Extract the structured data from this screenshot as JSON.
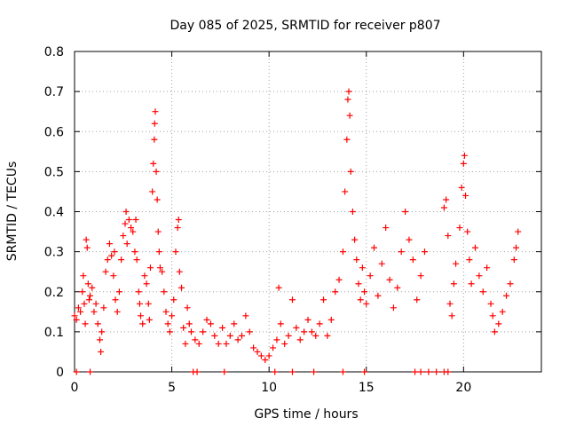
{
  "chart_data": {
    "type": "scatter",
    "title": "Day 085 of 2025, SRMTID for receiver p807",
    "xlabel": "GPS time / hours",
    "ylabel": "SRMTID / TECUs",
    "xlim": [
      0,
      24
    ],
    "ylim": [
      0,
      0.8
    ],
    "x_ticks": [
      0,
      5,
      10,
      15,
      20
    ],
    "x_tick_labels": [
      "0",
      "5",
      "10",
      "15",
      "20"
    ],
    "y_ticks": [
      0,
      0.1,
      0.2,
      0.3,
      0.4,
      0.5,
      0.6,
      0.7,
      0.8
    ],
    "y_tick_labels": [
      "0",
      "0.1",
      "0.2",
      "0.3",
      "0.4",
      "0.5",
      "0.6",
      "0.7",
      "0.8"
    ],
    "grid": true,
    "marker": "plus",
    "color": "#ff0000",
    "series": [
      {
        "name": "SRMTID",
        "points": [
          [
            0.0,
            0.14
          ],
          [
            0.1,
            0.13
          ],
          [
            0.2,
            0.16
          ],
          [
            0.3,
            0.15
          ],
          [
            0.4,
            0.2
          ],
          [
            0.45,
            0.24
          ],
          [
            0.5,
            0.17
          ],
          [
            0.55,
            0.12
          ],
          [
            0.6,
            0.33
          ],
          [
            0.65,
            0.31
          ],
          [
            0.7,
            0.22
          ],
          [
            0.75,
            0.18
          ],
          [
            0.8,
            0.19
          ],
          [
            0.9,
            0.21
          ],
          [
            1.0,
            0.15
          ],
          [
            1.1,
            0.17
          ],
          [
            1.2,
            0.12
          ],
          [
            1.3,
            0.08
          ],
          [
            1.35,
            0.05
          ],
          [
            1.4,
            0.1
          ],
          [
            1.5,
            0.16
          ],
          [
            1.6,
            0.25
          ],
          [
            1.7,
            0.28
          ],
          [
            1.8,
            0.32
          ],
          [
            1.9,
            0.29
          ],
          [
            2.0,
            0.24
          ],
          [
            2.05,
            0.3
          ],
          [
            2.1,
            0.18
          ],
          [
            2.2,
            0.15
          ],
          [
            2.3,
            0.2
          ],
          [
            2.4,
            0.28
          ],
          [
            2.5,
            0.34
          ],
          [
            2.6,
            0.37
          ],
          [
            2.65,
            0.4
          ],
          [
            2.7,
            0.32
          ],
          [
            2.8,
            0.38
          ],
          [
            2.9,
            0.36
          ],
          [
            3.0,
            0.35
          ],
          [
            3.1,
            0.3
          ],
          [
            3.15,
            0.38
          ],
          [
            3.2,
            0.28
          ],
          [
            3.3,
            0.2
          ],
          [
            3.35,
            0.17
          ],
          [
            3.4,
            0.14
          ],
          [
            3.5,
            0.12
          ],
          [
            3.6,
            0.24
          ],
          [
            3.7,
            0.22
          ],
          [
            3.8,
            0.17
          ],
          [
            3.85,
            0.13
          ],
          [
            3.9,
            0.26
          ],
          [
            4.0,
            0.45
          ],
          [
            4.05,
            0.52
          ],
          [
            4.1,
            0.58
          ],
          [
            4.12,
            0.62
          ],
          [
            4.15,
            0.65
          ],
          [
            4.2,
            0.5
          ],
          [
            4.25,
            0.43
          ],
          [
            4.3,
            0.35
          ],
          [
            4.35,
            0.3
          ],
          [
            4.4,
            0.26
          ],
          [
            4.5,
            0.25
          ],
          [
            4.6,
            0.2
          ],
          [
            4.7,
            0.15
          ],
          [
            4.8,
            0.12
          ],
          [
            4.9,
            0.1
          ],
          [
            5.0,
            0.14
          ],
          [
            5.1,
            0.18
          ],
          [
            5.2,
            0.3
          ],
          [
            5.3,
            0.36
          ],
          [
            5.35,
            0.38
          ],
          [
            5.4,
            0.25
          ],
          [
            5.5,
            0.21
          ],
          [
            5.6,
            0.11
          ],
          [
            5.7,
            0.07
          ],
          [
            5.8,
            0.16
          ],
          [
            5.9,
            0.12
          ],
          [
            6.0,
            0.1
          ],
          [
            6.2,
            0.08
          ],
          [
            6.4,
            0.07
          ],
          [
            6.6,
            0.1
          ],
          [
            6.8,
            0.13
          ],
          [
            7.0,
            0.12
          ],
          [
            7.2,
            0.09
          ],
          [
            7.4,
            0.07
          ],
          [
            7.6,
            0.11
          ],
          [
            7.8,
            0.07
          ],
          [
            8.0,
            0.09
          ],
          [
            8.2,
            0.12
          ],
          [
            8.4,
            0.08
          ],
          [
            8.6,
            0.09
          ],
          [
            8.8,
            0.14
          ],
          [
            9.0,
            0.1
          ],
          [
            9.2,
            0.06
          ],
          [
            9.4,
            0.05
          ],
          [
            9.6,
            0.04
          ],
          [
            9.8,
            0.03
          ],
          [
            10.0,
            0.04
          ],
          [
            10.2,
            0.06
          ],
          [
            10.4,
            0.08
          ],
          [
            10.5,
            0.21
          ],
          [
            10.6,
            0.12
          ],
          [
            10.8,
            0.07
          ],
          [
            11.0,
            0.09
          ],
          [
            11.2,
            0.18
          ],
          [
            11.4,
            0.11
          ],
          [
            11.6,
            0.08
          ],
          [
            11.8,
            0.1
          ],
          [
            12.0,
            0.13
          ],
          [
            12.2,
            0.1
          ],
          [
            12.4,
            0.09
          ],
          [
            12.6,
            0.12
          ],
          [
            12.8,
            0.18
          ],
          [
            13.0,
            0.09
          ],
          [
            13.2,
            0.13
          ],
          [
            13.4,
            0.2
          ],
          [
            13.6,
            0.23
          ],
          [
            13.8,
            0.3
          ],
          [
            13.9,
            0.45
          ],
          [
            14.0,
            0.58
          ],
          [
            14.05,
            0.68
          ],
          [
            14.1,
            0.7
          ],
          [
            14.15,
            0.64
          ],
          [
            14.2,
            0.5
          ],
          [
            14.3,
            0.4
          ],
          [
            14.4,
            0.33
          ],
          [
            14.5,
            0.28
          ],
          [
            14.6,
            0.22
          ],
          [
            14.7,
            0.18
          ],
          [
            14.8,
            0.26
          ],
          [
            14.9,
            0.2
          ],
          [
            15.0,
            0.17
          ],
          [
            15.2,
            0.24
          ],
          [
            15.4,
            0.31
          ],
          [
            15.6,
            0.19
          ],
          [
            15.8,
            0.27
          ],
          [
            16.0,
            0.36
          ],
          [
            16.2,
            0.23
          ],
          [
            16.4,
            0.16
          ],
          [
            16.6,
            0.21
          ],
          [
            16.8,
            0.3
          ],
          [
            17.0,
            0.4
          ],
          [
            17.2,
            0.33
          ],
          [
            17.4,
            0.28
          ],
          [
            17.6,
            0.18
          ],
          [
            17.8,
            0.24
          ],
          [
            18.0,
            0.3
          ],
          [
            19.0,
            0.41
          ],
          [
            19.1,
            0.43
          ],
          [
            19.2,
            0.34
          ],
          [
            19.3,
            0.17
          ],
          [
            19.4,
            0.14
          ],
          [
            19.5,
            0.22
          ],
          [
            19.6,
            0.27
          ],
          [
            19.8,
            0.36
          ],
          [
            19.9,
            0.46
          ],
          [
            20.0,
            0.52
          ],
          [
            20.05,
            0.54
          ],
          [
            20.1,
            0.44
          ],
          [
            20.2,
            0.35
          ],
          [
            20.3,
            0.28
          ],
          [
            20.4,
            0.22
          ],
          [
            20.6,
            0.31
          ],
          [
            20.8,
            0.24
          ],
          [
            21.0,
            0.2
          ],
          [
            21.2,
            0.26
          ],
          [
            21.4,
            0.17
          ],
          [
            21.5,
            0.14
          ],
          [
            21.6,
            0.1
          ],
          [
            21.8,
            0.12
          ],
          [
            22.0,
            0.15
          ],
          [
            22.2,
            0.19
          ],
          [
            22.4,
            0.22
          ],
          [
            22.6,
            0.28
          ],
          [
            22.7,
            0.31
          ],
          [
            22.8,
            0.35
          ]
        ]
      },
      {
        "name": "zero-markers",
        "points": [
          [
            0.1,
            0
          ],
          [
            0.8,
            0
          ],
          [
            6.1,
            0
          ],
          [
            6.3,
            0
          ],
          [
            7.7,
            0
          ],
          [
            10.3,
            0
          ],
          [
            11.2,
            0
          ],
          [
            12.3,
            0
          ],
          [
            13.8,
            0
          ],
          [
            14.9,
            0
          ],
          [
            17.5,
            0
          ],
          [
            17.8,
            0
          ],
          [
            18.2,
            0
          ],
          [
            18.6,
            0
          ],
          [
            19.0,
            0
          ],
          [
            19.2,
            0
          ]
        ]
      }
    ]
  }
}
